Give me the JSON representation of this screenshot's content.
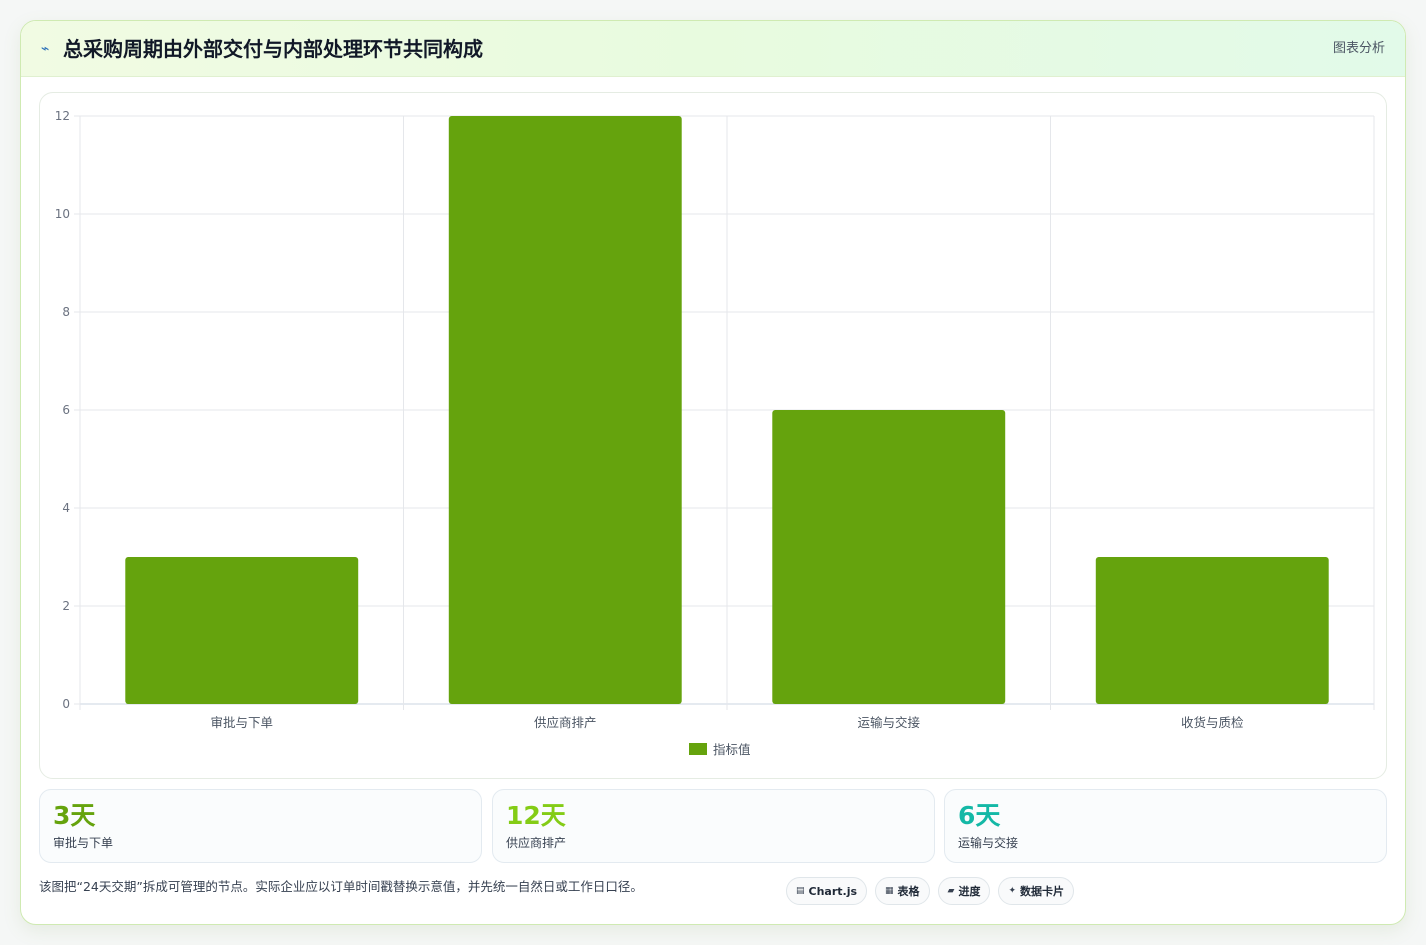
{
  "header": {
    "icon": "⌁",
    "title": "总采购周期由外部交付与内部处理环节共同构成",
    "tag": "图表分析"
  },
  "chart_data": {
    "type": "bar",
    "categories": [
      "审批与下单",
      "供应商排产",
      "运输与交接",
      "收货与质检"
    ],
    "series": [
      {
        "name": "指标值",
        "values": [
          3,
          12,
          6,
          3
        ],
        "color": "#65a30d"
      }
    ],
    "ylim": [
      0,
      12
    ],
    "yticks": [
      0,
      2,
      4,
      6,
      8,
      10,
      12
    ],
    "grid": true,
    "legend": "bottom"
  },
  "stats": [
    {
      "value": "3天",
      "label": "审批与下单",
      "color": "#65a30d"
    },
    {
      "value": "12天",
      "label": "供应商排产",
      "color": "#84cc16"
    },
    {
      "value": "6天",
      "label": "运输与交接",
      "color": "#14b8a6"
    }
  ],
  "footnote": "该图把“24天交期”拆成可管理的节点。实际企业应以订单时间戳替换示意值，并先统一自然日或工作日口径。",
  "pills": [
    {
      "icon": "▤",
      "icon_name": "chart-icon",
      "label": "Chart.js"
    },
    {
      "icon": "▦",
      "icon_name": "table-icon",
      "label": "表格"
    },
    {
      "icon": "▰",
      "icon_name": "progress-icon",
      "label": "进度"
    },
    {
      "icon": "✦",
      "icon_name": "sparkle-icon",
      "label": "数据卡片"
    }
  ]
}
